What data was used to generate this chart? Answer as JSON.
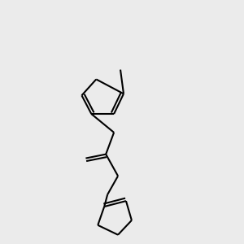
{
  "background_color": "#ebebeb",
  "bond_color": "#000000",
  "atom_colors": {
    "N": "#0000ff",
    "O": "#ff0000",
    "S": "#cccc00",
    "H": "#4a9090",
    "C": "#000000"
  },
  "figsize": [
    3.0,
    3.0
  ],
  "dpi": 100
}
